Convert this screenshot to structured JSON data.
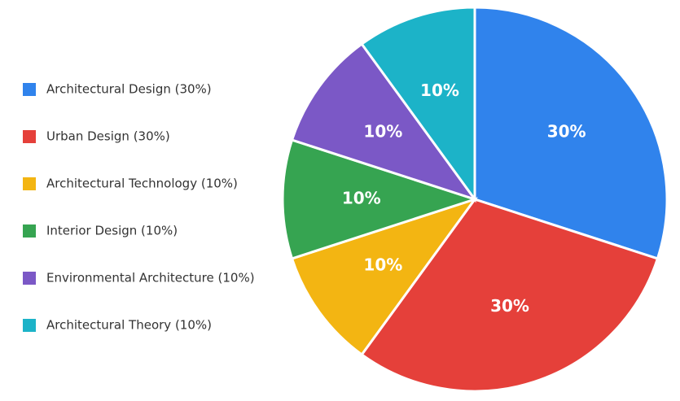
{
  "chart_data": {
    "type": "pie",
    "categories": [
      "Architectural Design (30%)",
      "Urban Design (30%)",
      "Architectural Technology (10%)",
      "Interior Design (10%)",
      "Environmental Architecture (10%)",
      "Architectural Theory (10%)"
    ],
    "values": [
      30,
      30,
      10,
      10,
      10,
      10
    ],
    "value_labels": [
      "30%",
      "30%",
      "10%",
      "10%",
      "10%",
      "10%"
    ],
    "colors": [
      "#3083ec",
      "#e5403a",
      "#f3b512",
      "#36a451",
      "#7b58c6",
      "#1cb3c8"
    ],
    "legend": "left"
  }
}
